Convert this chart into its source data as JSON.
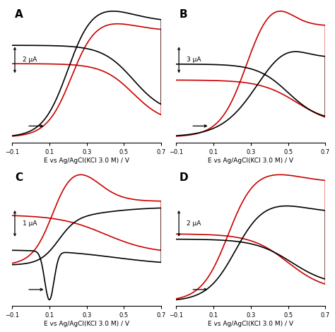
{
  "title": "",
  "panels": [
    "A",
    "B",
    "C",
    "D"
  ],
  "xlabel": "E vs Ag/AgCl(KCl 3.0 M) / V",
  "xlim": [
    -0.1,
    0.7
  ],
  "xticks": [
    -0.1,
    0.1,
    0.3,
    0.5,
    0.7
  ],
  "scale_labels": [
    "2 μA",
    "3 μA",
    "1 μA",
    "2 μA"
  ],
  "black_color": "#000000",
  "red_color": "#cc0000",
  "bg_color": "#ffffff"
}
